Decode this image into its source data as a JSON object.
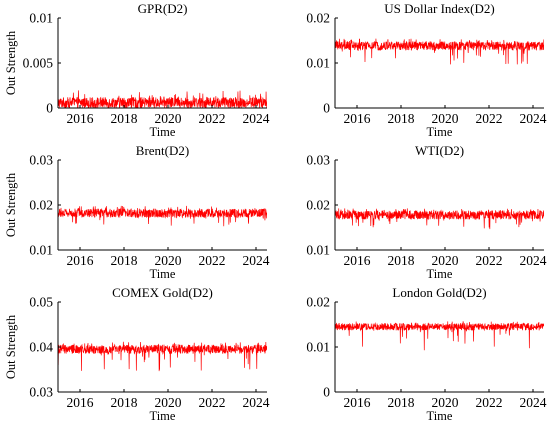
{
  "chart_data": [
    {
      "type": "line",
      "title": "GPR(D2)",
      "xlabel": "Time",
      "ylabel": "Out Strength",
      "xlim": [
        2015,
        2024.5
      ],
      "ylim": [
        0,
        0.01
      ],
      "xticks": [
        2016,
        2018,
        2020,
        2022,
        2024
      ],
      "yticks": [
        0,
        0.005,
        0.01
      ],
      "ytick_labels": [
        "0",
        "0.005",
        "0.01"
      ],
      "line_color": "#ff0000",
      "series": [
        {
          "center": 0.0007,
          "band_low": 0.0,
          "band_high": 0.0012,
          "spike_high": 0.002,
          "spike_low": 0.0
        }
      ]
    },
    {
      "type": "line",
      "title": "US Dollar Index(D2)",
      "xlabel": "Time",
      "ylabel": "",
      "xlim": [
        2015,
        2024.5
      ],
      "ylim": [
        0,
        0.02
      ],
      "xticks": [
        2016,
        2018,
        2020,
        2022,
        2024
      ],
      "yticks": [
        0,
        0.01,
        0.02
      ],
      "ytick_labels": [
        "0",
        "0.01",
        "0.02"
      ],
      "line_color": "#ff0000",
      "series": [
        {
          "center": 0.0138,
          "band_low": 0.0128,
          "band_high": 0.0148,
          "spike_high": 0.0155,
          "spike_low": 0.0095
        }
      ]
    },
    {
      "type": "line",
      "title": "Brent(D2)",
      "xlabel": "Time",
      "ylabel": "Out Strength",
      "xlim": [
        2015,
        2024.5
      ],
      "ylim": [
        0.01,
        0.03
      ],
      "xticks": [
        2016,
        2018,
        2020,
        2022,
        2024
      ],
      "yticks": [
        0.01,
        0.02,
        0.03
      ],
      "ytick_labels": [
        "0.01",
        "0.02",
        "0.03"
      ],
      "line_color": "#ff0000",
      "series": [
        {
          "center": 0.0182,
          "band_low": 0.0172,
          "band_high": 0.0192,
          "spike_high": 0.0198,
          "spike_low": 0.0152
        }
      ]
    },
    {
      "type": "line",
      "title": "WTI(D2)",
      "xlabel": "Time",
      "ylabel": "",
      "xlim": [
        2015,
        2024.5
      ],
      "ylim": [
        0.01,
        0.03
      ],
      "xticks": [
        2016,
        2018,
        2020,
        2022,
        2024
      ],
      "yticks": [
        0.01,
        0.02,
        0.03
      ],
      "ytick_labels": [
        "0.01",
        "0.02",
        "0.03"
      ],
      "line_color": "#ff0000",
      "series": [
        {
          "center": 0.0178,
          "band_low": 0.0168,
          "band_high": 0.0188,
          "spike_high": 0.0193,
          "spike_low": 0.0145
        }
      ]
    },
    {
      "type": "line",
      "title": "COMEX Gold(D2)",
      "xlabel": "Time",
      "ylabel": "Out Strength",
      "xlim": [
        2015,
        2024.5
      ],
      "ylim": [
        0.03,
        0.05
      ],
      "xticks": [
        2016,
        2018,
        2020,
        2022,
        2024
      ],
      "yticks": [
        0.03,
        0.04,
        0.05
      ],
      "ytick_labels": [
        "0.03",
        "0.04",
        "0.05"
      ],
      "line_color": "#ff0000",
      "series": [
        {
          "center": 0.0395,
          "band_low": 0.0385,
          "band_high": 0.0405,
          "spike_high": 0.0412,
          "spike_low": 0.0345
        }
      ]
    },
    {
      "type": "line",
      "title": "London Gold(D2)",
      "xlabel": "Time",
      "ylabel": "",
      "xlim": [
        2015,
        2024.5
      ],
      "ylim": [
        0,
        0.02
      ],
      "xticks": [
        2016,
        2018,
        2020,
        2022,
        2024
      ],
      "yticks": [
        0,
        0.01,
        0.02
      ],
      "ytick_labels": [
        "0",
        "0.01",
        "0.02"
      ],
      "line_color": "#ff0000",
      "series": [
        {
          "center": 0.0145,
          "band_low": 0.0137,
          "band_high": 0.0153,
          "spike_high": 0.0158,
          "spike_low": 0.0092
        }
      ]
    }
  ]
}
